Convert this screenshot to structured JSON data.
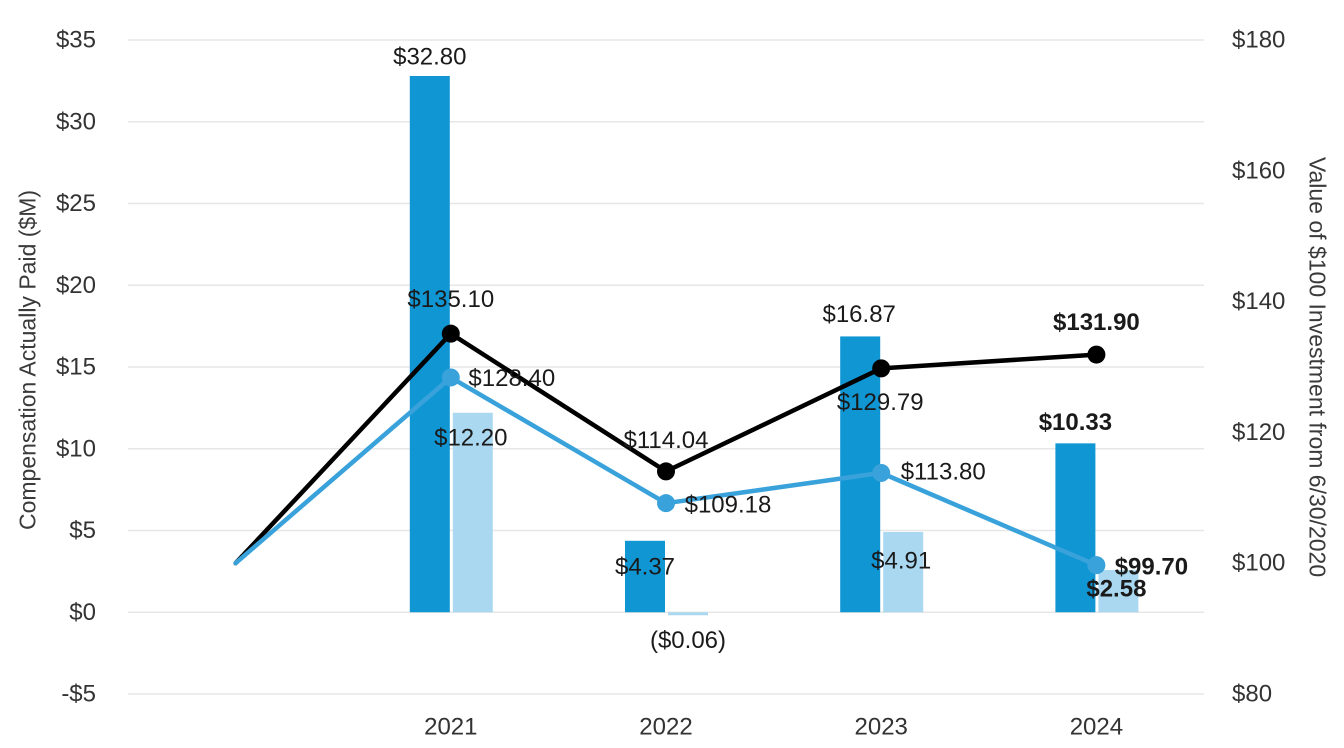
{
  "chart_data": {
    "type": "bar",
    "subtype": "combo: grouped bars (left axis) + two lines with point markers (right axis), dual y-axes, no title, no legend",
    "title": "",
    "categories": [
      "2021",
      "2022",
      "2023",
      "2024"
    ],
    "baseline_slot": {
      "label": "",
      "line_start_value": 100,
      "note": "both lines start one unlabeled slot left of 2021 at $100"
    },
    "left_axis": {
      "title": "Compensation Actually Paid ($M)",
      "min": -5,
      "max": 35,
      "tick_step": 5,
      "tick_labels": [
        "$35",
        "$30",
        "$25",
        "$20",
        "$15",
        "$10",
        "$5",
        "$0",
        "-$5"
      ]
    },
    "right_axis": {
      "title": "Value of $100 Investment from 6/30/2020",
      "min": 80,
      "max": 180,
      "tick_step": 20,
      "tick_labels": [
        "$180",
        "$160",
        "$140",
        "$120",
        "$100",
        "$80"
      ]
    },
    "grid": {
      "horizontal": true,
      "vertical": false,
      "color": "#E7E7E7"
    },
    "legend": {
      "visible": false
    },
    "colors": {
      "dark_bar": "#1196D4",
      "light_bar": "#A9D8F0",
      "black_line": "#000000",
      "light_line": "#39A2DB",
      "tick_text": "#333333",
      "axis_title_text": "#3A3A3A",
      "data_label_text": "#1A1A1A"
    },
    "series": [
      {
        "name": "dark-blue-bars",
        "kind": "bar",
        "axis": "left",
        "color": "#1196D4",
        "values": [
          32.8,
          4.37,
          16.87,
          10.33
        ],
        "labels": [
          "$32.80",
          "$4.37",
          "$16.87",
          "$10.33"
        ],
        "label_offsets": [
          {
            "dx": 0,
            "dy": -19
          },
          {
            "dx": 0,
            "dy": 26
          },
          {
            "dx": -1,
            "dy": -22
          },
          {
            "dx": 0,
            "dy": -21
          }
        ]
      },
      {
        "name": "light-blue-bars",
        "kind": "bar",
        "axis": "left",
        "color": "#A9D8F0",
        "values": [
          12.2,
          -0.06,
          4.91,
          2.58
        ],
        "labels": [
          "$12.20",
          "($0.06)",
          "$4.91",
          "$2.58"
        ],
        "label_offsets": [
          {
            "dx": -2,
            "dy": 25
          },
          {
            "dx": 0,
            "dy": 28
          },
          {
            "dx": -2,
            "dy": 29
          },
          {
            "dx": -2,
            "dy": 19
          }
        ]
      },
      {
        "name": "black-line",
        "kind": "line",
        "axis": "right",
        "color": "#000000",
        "start_value": 100,
        "values": [
          135.1,
          114.04,
          129.79,
          131.9
        ],
        "labels": [
          "$135.10",
          "$114.04",
          "$129.79",
          "$131.90"
        ],
        "label_offsets": [
          {
            "dx": 0,
            "dy": -34
          },
          {
            "dx": 0,
            "dy": -31
          },
          {
            "dx": -1,
            "dy": 34
          },
          {
            "dx": 0,
            "dy": -32
          }
        ]
      },
      {
        "name": "light-blue-line",
        "kind": "line",
        "axis": "right",
        "color": "#39A2DB",
        "start_value": 100,
        "values": [
          128.4,
          109.18,
          113.8,
          99.7
        ],
        "labels": [
          "$128.40",
          "$109.18",
          "$113.80",
          "$99.70"
        ],
        "label_offsets": [
          {
            "dx": 61,
            "dy": 1
          },
          {
            "dx": 62,
            "dy": 2
          },
          {
            "dx": 62,
            "dy": -1
          },
          {
            "dx": 55,
            "dy": 2
          }
        ]
      }
    ],
    "label_rules": {
      "last_category_bold": true
    }
  }
}
